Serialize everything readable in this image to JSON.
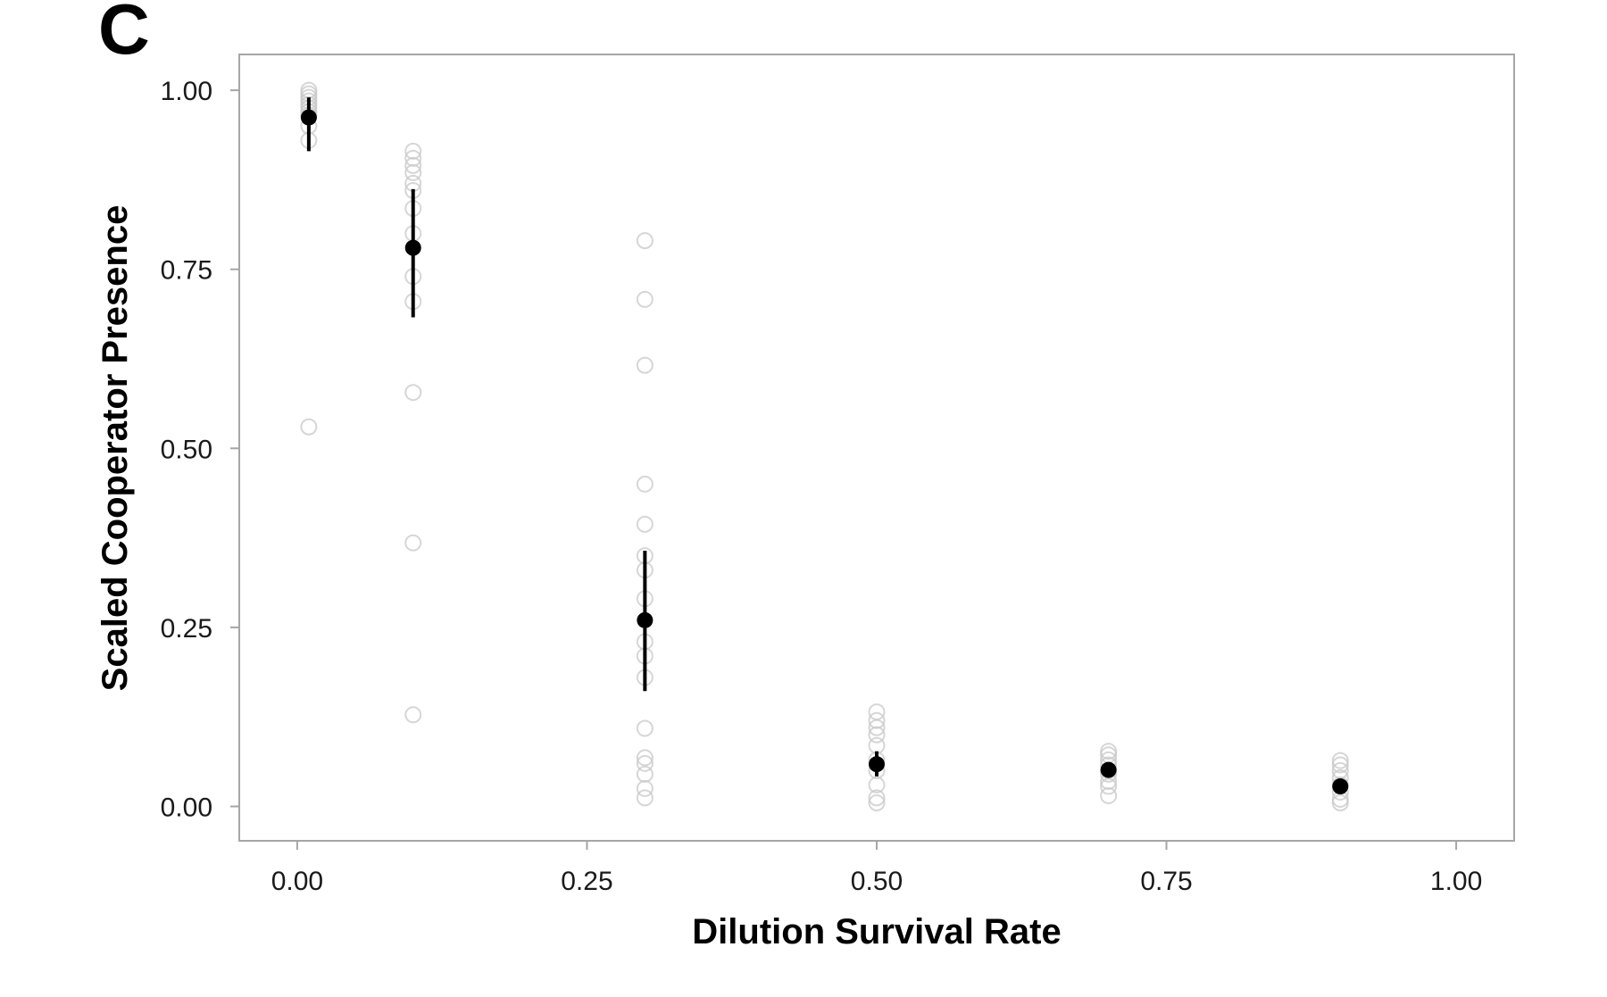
{
  "panel_label": "C",
  "colors": {
    "frame": "#a6a6a6",
    "raw_point": "#c8c8c8",
    "mean_point": "#000000",
    "error_bar": "#000000"
  },
  "chart_data": {
    "type": "scatter",
    "title": "",
    "xlabel": "Dilution Survival Rate",
    "ylabel": "Scaled Cooperator Presence",
    "xlim": [
      -0.05,
      1.05
    ],
    "ylim": [
      -0.048,
      1.05
    ],
    "xticks": [
      0.0,
      0.25,
      0.5,
      0.75,
      1.0
    ],
    "xtick_labels": [
      "0.00",
      "0.25",
      "0.50",
      "0.75",
      "1.00"
    ],
    "yticks": [
      0.0,
      0.25,
      0.5,
      0.75,
      1.0
    ],
    "ytick_labels": [
      "0.00",
      "0.25",
      "0.50",
      "0.75",
      "1.00"
    ],
    "grid": false,
    "legend": "none",
    "series": [
      {
        "role": "replicates",
        "marker": "open-circle",
        "points": [
          {
            "x": 0.01,
            "ys": [
              1.0,
              0.995,
              0.99,
              0.985,
              0.98,
              0.975,
              0.97,
              0.965,
              0.95,
              0.93,
              0.53
            ]
          },
          {
            "x": 0.1,
            "ys": [
              0.915,
              0.905,
              0.895,
              0.885,
              0.87,
              0.86,
              0.835,
              0.8,
              0.74,
              0.705,
              0.578,
              0.368,
              0.128
            ]
          },
          {
            "x": 0.3,
            "ys": [
              0.79,
              0.708,
              0.616,
              0.45,
              0.394,
              0.35,
              0.33,
              0.29,
              0.23,
              0.21,
              0.18,
              0.109,
              0.068,
              0.06,
              0.045,
              0.025,
              0.012
            ]
          },
          {
            "x": 0.5,
            "ys": [
              0.132,
              0.12,
              0.11,
              0.1,
              0.085,
              0.065,
              0.05,
              0.03,
              0.012,
              0.005
            ]
          },
          {
            "x": 0.7,
            "ys": [
              0.077,
              0.072,
              0.065,
              0.058,
              0.05,
              0.045,
              0.035,
              0.028,
              0.015
            ]
          },
          {
            "x": 0.9,
            "ys": [
              0.064,
              0.058,
              0.05,
              0.04,
              0.03,
              0.02,
              0.01,
              0.005
            ]
          }
        ]
      },
      {
        "role": "mean",
        "marker": "filled-circle",
        "points": [
          {
            "x": 0.01,
            "y": 0.962,
            "ci": [
              0.915,
              0.99
            ]
          },
          {
            "x": 0.1,
            "y": 0.78,
            "ci": [
              0.683,
              0.862
            ]
          },
          {
            "x": 0.3,
            "y": 0.26,
            "ci": [
              0.161,
              0.357
            ]
          },
          {
            "x": 0.5,
            "y": 0.059,
            "ci": [
              0.042,
              0.077
            ]
          },
          {
            "x": 0.7,
            "y": 0.051,
            "ci": [
              0.044,
              0.058
            ]
          },
          {
            "x": 0.9,
            "y": 0.028,
            "ci": [
              0.022,
              0.034
            ]
          }
        ]
      }
    ]
  }
}
